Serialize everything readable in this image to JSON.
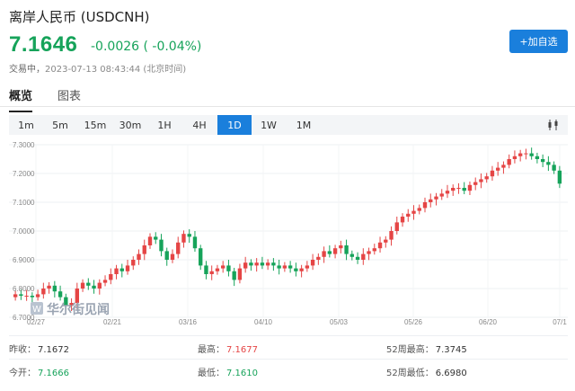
{
  "header": {
    "title": "离岸人民币 (USDCNH)",
    "price": "7.1646",
    "change": "-0.0026 ( -0.04%)",
    "status_prefix": "交易中，",
    "timestamp": "2023-07-13 08:43:44 (北京时间)",
    "add_button": "+加自选"
  },
  "tabs": {
    "overview": "概览",
    "chart": "图表"
  },
  "periods": [
    "1m",
    "5m",
    "15m",
    "30m",
    "1H",
    "4H",
    "1D",
    "1W",
    "1M"
  ],
  "active_period": "1D",
  "chart_type_icon": "candlestick-icon",
  "watermark": "华尔街见闻",
  "colors": {
    "up": "#e54545",
    "down": "#16a35a",
    "accent": "#1a7fdc"
  },
  "chart_data": {
    "type": "candlestick",
    "y_tick_labels": [
      "7.3000",
      "7.2000",
      "7.1000",
      "7.0000",
      "6.9000",
      "6.8000",
      "6.7000"
    ],
    "x_tick_labels": [
      "02/27",
      "02/21",
      "03/16",
      "04/10",
      "05/03",
      "05/26",
      "06/20",
      "07/1"
    ],
    "y_range": [
      6.7,
      7.3
    ],
    "closes": [
      6.78,
      6.775,
      6.775,
      6.77,
      6.78,
      6.8,
      6.81,
      6.79,
      6.77,
      6.74,
      6.75,
      6.8,
      6.82,
      6.81,
      6.8,
      6.82,
      6.83,
      6.85,
      6.87,
      6.86,
      6.88,
      6.9,
      6.92,
      6.95,
      6.98,
      6.97,
      6.93,
      6.9,
      6.92,
      6.96,
      6.99,
      6.98,
      6.94,
      6.88,
      6.85,
      6.86,
      6.87,
      6.88,
      6.86,
      6.83,
      6.87,
      6.89,
      6.88,
      6.89,
      6.88,
      6.89,
      6.88,
      6.87,
      6.88,
      6.87,
      6.86,
      6.87,
      6.88,
      6.9,
      6.91,
      6.93,
      6.92,
      6.94,
      6.95,
      6.92,
      6.91,
      6.9,
      6.92,
      6.93,
      6.94,
      6.96,
      6.97,
      7.0,
      7.03,
      7.05,
      7.06,
      7.07,
      7.08,
      7.1,
      7.11,
      7.12,
      7.13,
      7.14,
      7.15,
      7.15,
      7.14,
      7.16,
      7.17,
      7.18,
      7.19,
      7.21,
      7.22,
      7.23,
      7.25,
      7.26,
      7.27,
      7.27,
      7.26,
      7.25,
      7.24,
      7.23,
      7.21,
      7.1646
    ]
  },
  "stats": {
    "prev_close_label": "昨收：",
    "prev_close": "7.1672",
    "high_label": "最高：",
    "high": "7.1677",
    "high52_label": "52周最高：",
    "high52": "7.3745",
    "open_label": "今开：",
    "open": "7.1666",
    "low_label": "最低：",
    "low": "7.1610",
    "low52_label": "52周最低：",
    "low52": "6.6980"
  }
}
